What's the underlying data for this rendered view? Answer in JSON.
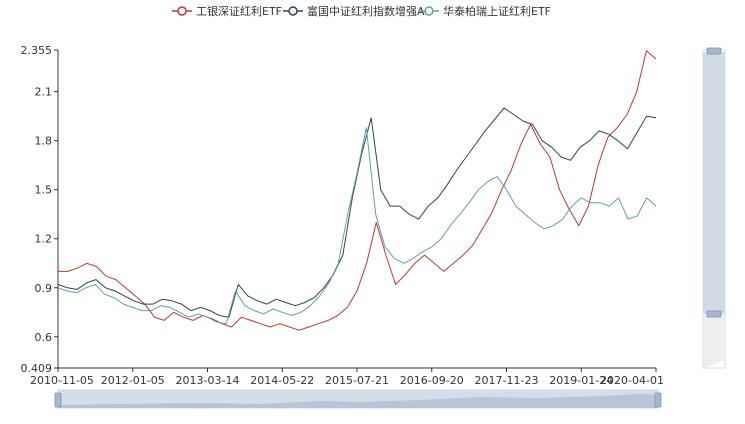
{
  "chart_data": {
    "type": "line",
    "title": "",
    "xlabel": "",
    "ylabel": "",
    "ylim": [
      0.409,
      2.355
    ],
    "y_ticks": [
      "0.409",
      "0.6",
      "0.9",
      "1.2",
      "1.5",
      "1.8",
      "2.1",
      "2.355"
    ],
    "x_ticks": [
      "2010-11-05",
      "2012-01-05",
      "2013-03-14",
      "2014-05-22",
      "2015-07-21",
      "2016-09-20",
      "2017-11-23",
      "2019-01-24",
      "2020-04-01"
    ],
    "legend_position": "top-center",
    "grid": false,
    "series": [
      {
        "name": "工银深证红利ETF",
        "color": "#c23531",
        "values": [
          1.0,
          1.0,
          1.02,
          1.05,
          1.03,
          0.97,
          0.95,
          0.9,
          0.85,
          0.8,
          0.72,
          0.7,
          0.75,
          0.72,
          0.7,
          0.73,
          0.71,
          0.68,
          0.66,
          0.72,
          0.7,
          0.68,
          0.66,
          0.68,
          0.66,
          0.64,
          0.66,
          0.68,
          0.7,
          0.73,
          0.78,
          0.88,
          1.05,
          1.3,
          1.1,
          0.92,
          0.98,
          1.05,
          1.1,
          1.05,
          1.0,
          1.05,
          1.1,
          1.16,
          1.26,
          1.36,
          1.5,
          1.62,
          1.78,
          1.9,
          1.78,
          1.7,
          1.5,
          1.38,
          1.28,
          1.4,
          1.65,
          1.82,
          1.88,
          1.96,
          2.1,
          2.35,
          2.3
        ]
      },
      {
        "name": "富国中证红利指数增强A",
        "color": "#2f4554",
        "values": [
          0.92,
          0.9,
          0.89,
          0.93,
          0.95,
          0.9,
          0.88,
          0.85,
          0.82,
          0.8,
          0.8,
          0.83,
          0.82,
          0.8,
          0.76,
          0.78,
          0.76,
          0.73,
          0.72,
          0.92,
          0.85,
          0.82,
          0.8,
          0.83,
          0.81,
          0.79,
          0.81,
          0.84,
          0.9,
          0.98,
          1.1,
          1.45,
          1.72,
          1.94,
          1.5,
          1.4,
          1.4,
          1.35,
          1.32,
          1.4,
          1.45,
          1.53,
          1.62,
          1.7,
          1.78,
          1.86,
          1.93,
          2.0,
          1.96,
          1.92,
          1.9,
          1.8,
          1.76,
          1.7,
          1.68,
          1.76,
          1.8,
          1.86,
          1.84,
          1.8,
          1.75,
          1.85,
          1.95,
          1.94
        ]
      },
      {
        "name": "华泰柏瑞上证红利ETF",
        "color": "#61a0a8",
        "values": [
          0.9,
          0.88,
          0.87,
          0.9,
          0.92,
          0.86,
          0.84,
          0.8,
          0.78,
          0.76,
          0.76,
          0.79,
          0.78,
          0.75,
          0.72,
          0.74,
          0.72,
          0.69,
          0.68,
          0.88,
          0.79,
          0.76,
          0.74,
          0.77,
          0.75,
          0.73,
          0.75,
          0.79,
          0.85,
          0.93,
          1.05,
          1.35,
          1.6,
          1.88,
          1.35,
          1.15,
          1.08,
          1.05,
          1.08,
          1.12,
          1.15,
          1.2,
          1.28,
          1.35,
          1.42,
          1.5,
          1.55,
          1.58,
          1.5,
          1.4,
          1.35,
          1.3,
          1.26,
          1.28,
          1.32,
          1.4,
          1.45,
          1.42,
          1.42,
          1.4,
          1.45,
          1.32,
          1.34,
          1.45,
          1.4
        ]
      }
    ]
  }
}
